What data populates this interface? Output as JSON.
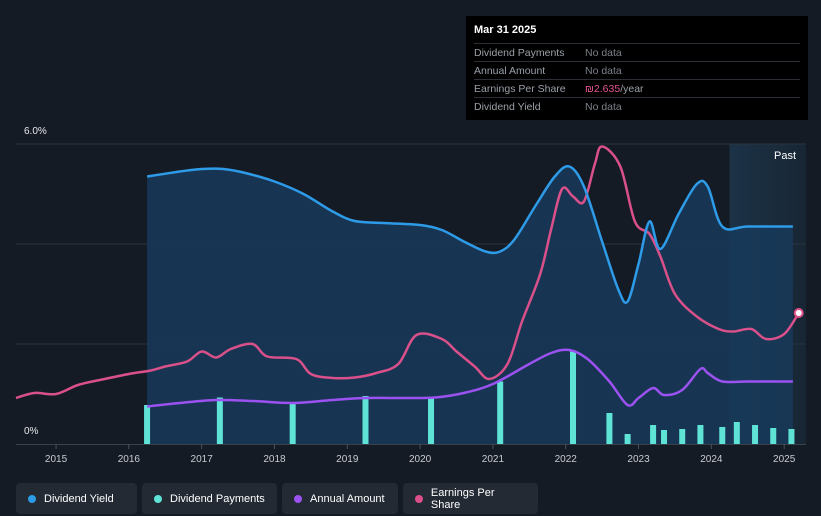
{
  "colors": {
    "yield": "#2e9be8",
    "payments": "#5ee3d6",
    "annual": "#9b52f0",
    "eps": "#d9508a",
    "area_fill": "#173a5a",
    "background": "#151b24"
  },
  "tooltip": {
    "date": "Mar 31 2025",
    "rows": [
      {
        "label": "Dividend Payments",
        "value": "No data",
        "unit": ""
      },
      {
        "label": "Annual Amount",
        "value": "No data",
        "unit": ""
      },
      {
        "label": "Earnings Per Share",
        "value": "₪2.635",
        "unit": "/year"
      },
      {
        "label": "Dividend Yield",
        "value": "No data",
        "unit": ""
      }
    ]
  },
  "past_label": "Past",
  "legend": [
    {
      "label": "Dividend Yield",
      "color": "#2e9be8"
    },
    {
      "label": "Dividend Payments",
      "color": "#5ee3d6"
    },
    {
      "label": "Annual Amount",
      "color": "#9b52f0"
    },
    {
      "label": "Earnings Per Share",
      "color": "#d9508a"
    }
  ],
  "chart_data": {
    "type": "line",
    "title": "",
    "xlabel": "",
    "ylabel": "",
    "y_tick_labels": [
      "6.0%",
      "0%"
    ],
    "ylim": [
      0,
      6.0
    ],
    "xlim": [
      2014.45,
      2025.3
    ],
    "x_ticks": [
      2015,
      2016,
      2017,
      2018,
      2019,
      2020,
      2021,
      2022,
      2023,
      2024,
      2025
    ],
    "forecast_region_start": 2024.25,
    "series": [
      {
        "name": "Dividend Yield",
        "kind": "area",
        "points": [
          [
            2016.25,
            5.35
          ],
          [
            2016.7,
            5.45
          ],
          [
            2017.0,
            5.5
          ],
          [
            2017.3,
            5.5
          ],
          [
            2017.6,
            5.42
          ],
          [
            2018.0,
            5.25
          ],
          [
            2018.4,
            5.0
          ],
          [
            2018.8,
            4.65
          ],
          [
            2019.1,
            4.46
          ],
          [
            2019.5,
            4.42
          ],
          [
            2020.0,
            4.38
          ],
          [
            2020.3,
            4.28
          ],
          [
            2020.6,
            4.05
          ],
          [
            2020.9,
            3.85
          ],
          [
            2021.1,
            3.85
          ],
          [
            2021.3,
            4.1
          ],
          [
            2021.6,
            4.8
          ],
          [
            2021.85,
            5.35
          ],
          [
            2022.05,
            5.55
          ],
          [
            2022.25,
            5.15
          ],
          [
            2022.5,
            4.05
          ],
          [
            2022.72,
            3.1
          ],
          [
            2022.85,
            2.85
          ],
          [
            2023.0,
            3.6
          ],
          [
            2023.15,
            4.45
          ],
          [
            2023.3,
            3.9
          ],
          [
            2023.55,
            4.6
          ],
          [
            2023.8,
            5.2
          ],
          [
            2023.95,
            5.15
          ],
          [
            2024.15,
            4.35
          ],
          [
            2024.5,
            4.35
          ],
          [
            2025.12,
            4.35
          ]
        ]
      },
      {
        "name": "Earnings Per Share",
        "kind": "line",
        "points": [
          [
            2014.45,
            0.92
          ],
          [
            2014.7,
            1.02
          ],
          [
            2015.0,
            1.0
          ],
          [
            2015.3,
            1.18
          ],
          [
            2015.6,
            1.28
          ],
          [
            2016.0,
            1.4
          ],
          [
            2016.3,
            1.47
          ],
          [
            2016.5,
            1.55
          ],
          [
            2016.8,
            1.65
          ],
          [
            2017.0,
            1.85
          ],
          [
            2017.2,
            1.73
          ],
          [
            2017.4,
            1.9
          ],
          [
            2017.7,
            2.0
          ],
          [
            2017.9,
            1.75
          ],
          [
            2018.3,
            1.7
          ],
          [
            2018.5,
            1.4
          ],
          [
            2018.8,
            1.32
          ],
          [
            2019.1,
            1.33
          ],
          [
            2019.4,
            1.42
          ],
          [
            2019.7,
            1.6
          ],
          [
            2019.95,
            2.18
          ],
          [
            2020.3,
            2.1
          ],
          [
            2020.5,
            1.85
          ],
          [
            2020.75,
            1.55
          ],
          [
            2020.95,
            1.3
          ],
          [
            2021.2,
            1.6
          ],
          [
            2021.4,
            2.45
          ],
          [
            2021.65,
            3.4
          ],
          [
            2021.8,
            4.3
          ],
          [
            2021.95,
            5.1
          ],
          [
            2022.1,
            4.95
          ],
          [
            2022.25,
            4.85
          ],
          [
            2022.4,
            5.6
          ],
          [
            2022.5,
            5.95
          ],
          [
            2022.75,
            5.55
          ],
          [
            2022.95,
            4.45
          ],
          [
            2023.15,
            4.2
          ],
          [
            2023.3,
            3.75
          ],
          [
            2023.5,
            3.0
          ],
          [
            2023.8,
            2.55
          ],
          [
            2024.1,
            2.3
          ],
          [
            2024.3,
            2.25
          ],
          [
            2024.55,
            2.3
          ],
          [
            2024.75,
            2.1
          ],
          [
            2025.0,
            2.2
          ],
          [
            2025.2,
            2.62
          ]
        ]
      },
      {
        "name": "Annual Amount",
        "kind": "line",
        "points": [
          [
            2016.25,
            0.75
          ],
          [
            2016.7,
            0.82
          ],
          [
            2017.2,
            0.88
          ],
          [
            2017.7,
            0.86
          ],
          [
            2018.25,
            0.82
          ],
          [
            2018.8,
            0.88
          ],
          [
            2019.25,
            0.92
          ],
          [
            2019.8,
            0.92
          ],
          [
            2020.2,
            0.93
          ],
          [
            2020.6,
            1.02
          ],
          [
            2021.0,
            1.2
          ],
          [
            2021.5,
            1.6
          ],
          [
            2021.8,
            1.82
          ],
          [
            2022.05,
            1.88
          ],
          [
            2022.3,
            1.7
          ],
          [
            2022.6,
            1.25
          ],
          [
            2022.85,
            0.78
          ],
          [
            2023.0,
            0.92
          ],
          [
            2023.2,
            1.12
          ],
          [
            2023.35,
            0.98
          ],
          [
            2023.6,
            1.08
          ],
          [
            2023.85,
            1.5
          ],
          [
            2023.95,
            1.42
          ],
          [
            2024.15,
            1.25
          ],
          [
            2024.5,
            1.25
          ],
          [
            2025.12,
            1.25
          ]
        ]
      }
    ],
    "bars": {
      "name": "Dividend Payments",
      "points": [
        [
          2016.25,
          0.78
        ],
        [
          2017.25,
          0.93
        ],
        [
          2018.25,
          0.84
        ],
        [
          2019.25,
          0.96
        ],
        [
          2020.15,
          0.94
        ],
        [
          2021.1,
          1.25
        ],
        [
          2022.1,
          1.85
        ],
        [
          2022.6,
          0.62
        ],
        [
          2022.85,
          0.2
        ],
        [
          2023.2,
          0.38
        ],
        [
          2023.35,
          0.28
        ],
        [
          2023.6,
          0.3
        ],
        [
          2023.85,
          0.38
        ],
        [
          2024.15,
          0.34
        ],
        [
          2024.35,
          0.44
        ],
        [
          2024.6,
          0.38
        ],
        [
          2024.85,
          0.32
        ],
        [
          2025.1,
          0.3
        ]
      ]
    }
  }
}
